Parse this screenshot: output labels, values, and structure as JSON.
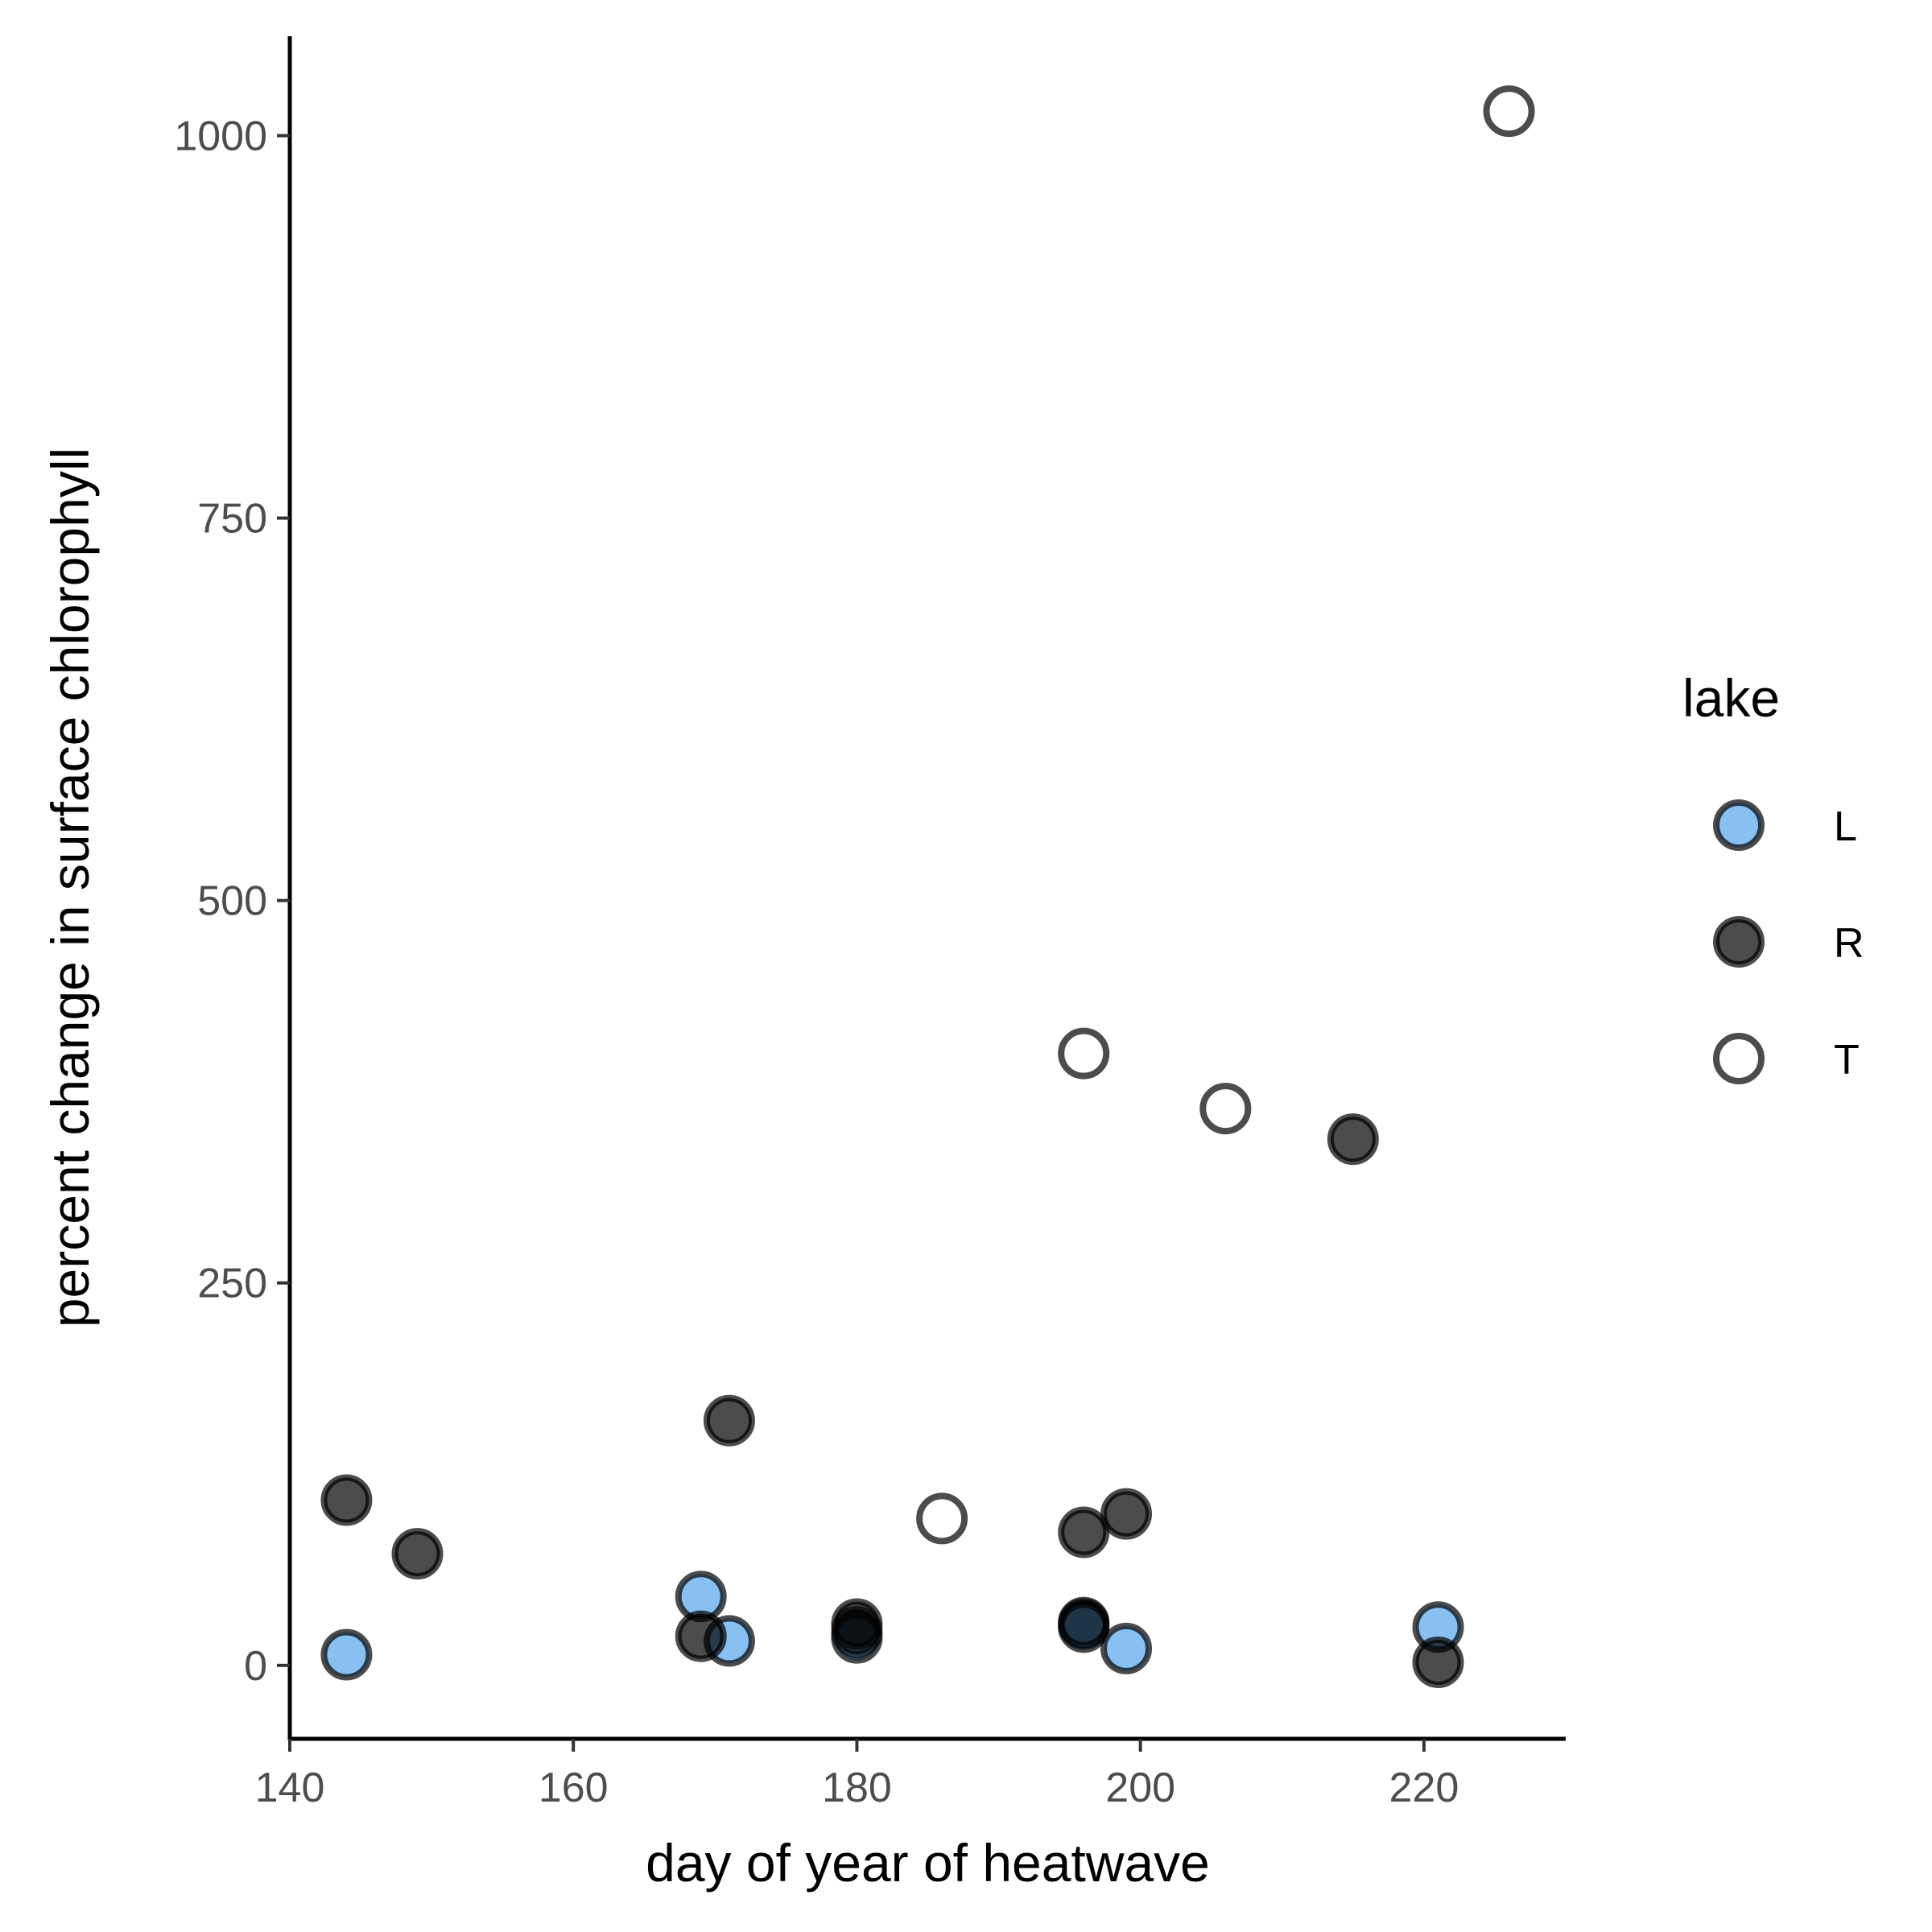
{
  "chart_data": {
    "type": "scatter",
    "title": "",
    "xlabel": "day of year of heatwave",
    "ylabel": "percent change in surface chlorophyll",
    "xlim": [
      140,
      230
    ],
    "ylim": [
      -48,
      1065
    ],
    "xticks": [
      140,
      160,
      180,
      200,
      220
    ],
    "yticks": [
      0,
      250,
      500,
      750,
      1000
    ],
    "grid": false,
    "legend": {
      "title": "lake",
      "position": "right"
    },
    "series": [
      {
        "name": "L",
        "color": "#56a5ec",
        "points": [
          {
            "x": 144,
            "y": 7
          },
          {
            "x": 169,
            "y": 45
          },
          {
            "x": 171,
            "y": 16
          },
          {
            "x": 180,
            "y": 18
          },
          {
            "x": 196,
            "y": 27
          },
          {
            "x": 196,
            "y": 25
          },
          {
            "x": 199,
            "y": 11
          },
          {
            "x": 221,
            "y": 25
          }
        ]
      },
      {
        "name": "R",
        "color": "#000000",
        "points": [
          {
            "x": 144,
            "y": 108
          },
          {
            "x": 149,
            "y": 73
          },
          {
            "x": 169,
            "y": 19
          },
          {
            "x": 171,
            "y": 160
          },
          {
            "x": 180,
            "y": 27
          },
          {
            "x": 180,
            "y": 22
          },
          {
            "x": 196,
            "y": 87
          },
          {
            "x": 196,
            "y": 28
          },
          {
            "x": 199,
            "y": 99
          },
          {
            "x": 215,
            "y": 344
          },
          {
            "x": 221,
            "y": 2
          }
        ]
      },
      {
        "name": "T",
        "color": "#ffffff",
        "points": [
          {
            "x": 186,
            "y": 96
          },
          {
            "x": 196,
            "y": 400
          },
          {
            "x": 206,
            "y": 364
          },
          {
            "x": 226,
            "y": 1016
          }
        ]
      }
    ]
  }
}
